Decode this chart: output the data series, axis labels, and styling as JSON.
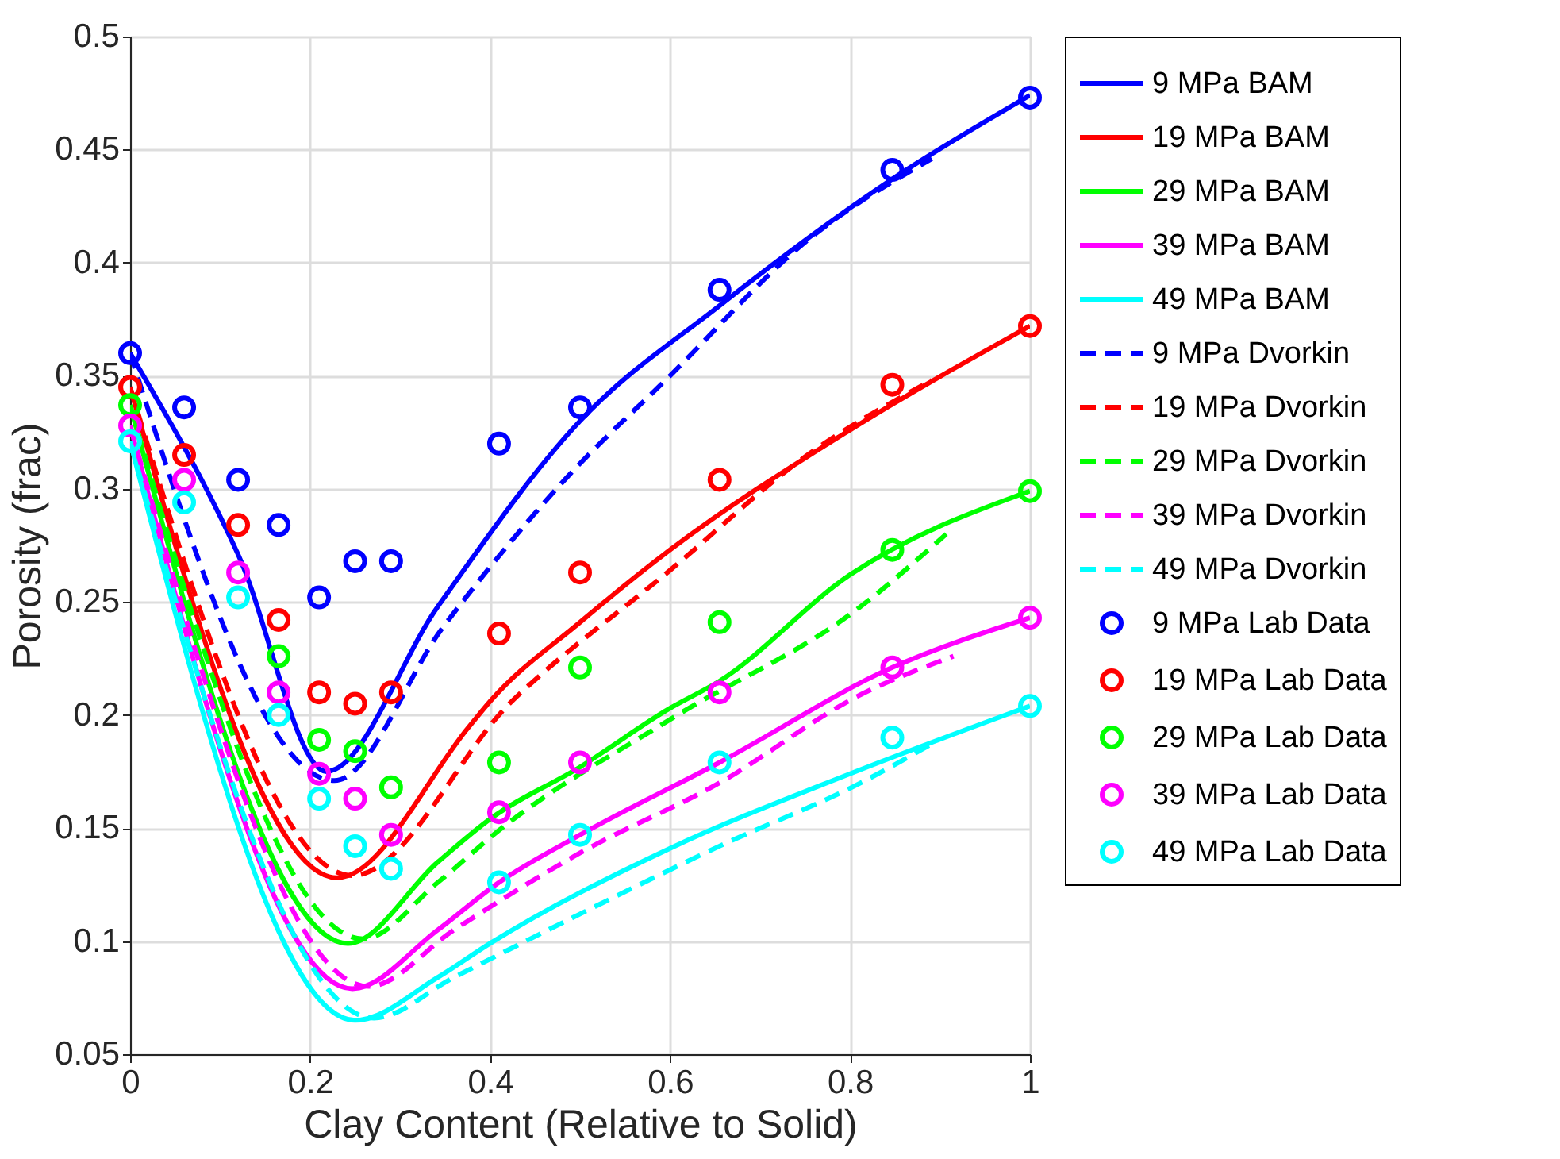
{
  "chart_data": {
    "type": "line",
    "xlabel": "Clay Content (Relative to Solid)",
    "ylabel": "Porosity (frac)",
    "xlim": [
      0,
      1
    ],
    "ylim": [
      0.05,
      0.5
    ],
    "xticks": [
      0,
      0.2,
      0.4,
      0.6,
      0.8,
      1
    ],
    "yticks": [
      0.05,
      0.1,
      0.15,
      0.2,
      0.25,
      0.3,
      0.35,
      0.4,
      0.45,
      0.5
    ],
    "grid": true,
    "legend": "top right",
    "series": [
      {
        "name": "9 MPa BAM",
        "type": "line",
        "line_style": "solid",
        "color": "#0000ff",
        "x": [
          0,
          0.12,
          0.218,
          0.342,
          0.5,
          0.655,
          0.847,
          1
        ],
        "values": [
          0.36,
          0.271,
          0.175,
          0.248,
          0.33,
          0.381,
          0.437,
          0.474
        ]
      },
      {
        "name": "19 MPa BAM",
        "type": "line",
        "line_style": "solid",
        "color": "#ff0000",
        "x": [
          0,
          0.23,
          0.377,
          0.4,
          0.5,
          0.6,
          0.8,
          1
        ],
        "values": [
          0.345,
          0.128,
          0.195,
          0.206,
          0.241,
          0.273,
          0.326,
          0.372
        ]
      },
      {
        "name": "29 MPa BAM",
        "type": "line",
        "line_style": "solid",
        "color": "#00ff00",
        "x": [
          0,
          0.242,
          0.342,
          0.4,
          0.5,
          0.6,
          0.655,
          0.8,
          1
        ],
        "values": [
          0.337,
          0.099,
          0.135,
          0.154,
          0.177,
          0.203,
          0.215,
          0.262,
          0.299
        ]
      },
      {
        "name": "39 MPa BAM",
        "type": "line",
        "line_style": "solid",
        "color": "#ff00ff",
        "x": [
          0,
          0.247,
          0.342,
          0.41,
          0.5,
          0.655,
          0.847,
          1
        ],
        "values": [
          0.328,
          0.079,
          0.105,
          0.126,
          0.147,
          0.179,
          0.221,
          0.243
        ]
      },
      {
        "name": "49 MPa BAM",
        "type": "line",
        "line_style": "solid",
        "color": "#00ffff",
        "x": [
          0,
          0.25,
          0.342,
          0.4,
          0.6,
          0.8,
          1
        ],
        "values": [
          0.321,
          0.065,
          0.084,
          0.099,
          0.141,
          0.174,
          0.204
        ]
      },
      {
        "name": "9 MPa Dvorkin",
        "type": "line",
        "line_style": "dashed",
        "color": "#0000ff",
        "x": [
          0,
          0.227,
          0.348,
          0.483,
          0.6,
          0.753,
          0.891
        ],
        "values": [
          0.36,
          0.171,
          0.239,
          0.304,
          0.35,
          0.41,
          0.446
        ]
      },
      {
        "name": "19 MPa Dvorkin",
        "type": "line",
        "line_style": "dashed",
        "color": "#ff0000",
        "x": [
          0,
          0.247,
          0.424,
          0.6,
          0.753,
          0.891
        ],
        "values": [
          0.345,
          0.129,
          0.206,
          0.264,
          0.315,
          0.348
        ]
      },
      {
        "name": "29 MPa Dvorkin",
        "type": "line",
        "line_style": "dashed",
        "color": "#00ff00",
        "x": [
          0,
          0.259,
          0.342,
          0.41,
          0.6,
          0.812,
          0.907
        ],
        "values": [
          0.337,
          0.101,
          0.126,
          0.149,
          0.198,
          0.248,
          0.28
        ]
      },
      {
        "name": "39 MPa Dvorkin",
        "type": "line",
        "line_style": "dashed",
        "color": "#ff00ff",
        "x": [
          0,
          0.265,
          0.36,
          0.5,
          0.655,
          0.812,
          0.915
        ],
        "values": [
          0.328,
          0.08,
          0.105,
          0.139,
          0.17,
          0.209,
          0.226
        ]
      },
      {
        "name": "49 MPa Dvorkin",
        "type": "line",
        "line_style": "dashed",
        "color": "#00ffff",
        "x": [
          0,
          0.271,
          0.36,
          0.5,
          0.655,
          0.812,
          0.89
        ],
        "values": [
          0.321,
          0.066,
          0.084,
          0.112,
          0.142,
          0.17,
          0.187
        ]
      },
      {
        "name": "9 MPa Lab Data",
        "type": "scatter",
        "marker": "circle",
        "color": "#0000ff",
        "x": [
          0,
          0.06,
          0.12,
          0.165,
          0.21,
          0.25,
          0.29,
          0.41,
          0.5,
          0.655,
          0.847,
          1
        ],
        "values": [
          0.36,
          0.336,
          0.304,
          0.284,
          0.252,
          0.268,
          0.268,
          0.32,
          0.336,
          0.388,
          0.441,
          0.473
        ]
      },
      {
        "name": "19 MPa Lab Data",
        "type": "scatter",
        "marker": "circle",
        "color": "#ff0000",
        "x": [
          0,
          0.06,
          0.12,
          0.165,
          0.21,
          0.25,
          0.29,
          0.41,
          0.5,
          0.655,
          0.847,
          1
        ],
        "values": [
          0.345,
          0.315,
          0.284,
          0.242,
          0.21,
          0.205,
          0.21,
          0.236,
          0.263,
          0.304,
          0.346,
          0.372
        ]
      },
      {
        "name": "29 MPa Lab Data",
        "type": "scatter",
        "marker": "circle",
        "color": "#00ff00",
        "x": [
          0,
          0.06,
          0.12,
          0.165,
          0.21,
          0.25,
          0.29,
          0.41,
          0.5,
          0.655,
          0.847,
          1
        ],
        "values": [
          0.337,
          null,
          null,
          0.226,
          0.189,
          0.184,
          0.168,
          0.179,
          0.221,
          0.241,
          0.273,
          0.299
        ]
      },
      {
        "name": "39 MPa Lab Data",
        "type": "scatter",
        "marker": "circle",
        "color": "#ff00ff",
        "x": [
          0,
          0.06,
          0.12,
          0.165,
          0.21,
          0.25,
          0.29,
          0.41,
          0.5,
          0.655,
          0.847,
          1
        ],
        "values": [
          0.328,
          0.304,
          0.263,
          0.21,
          0.174,
          0.163,
          0.147,
          0.157,
          0.179,
          0.21,
          0.221,
          0.243
        ]
      },
      {
        "name": "49 MPa Lab Data",
        "type": "scatter",
        "marker": "circle",
        "color": "#00ffff",
        "x": [
          0,
          0.06,
          0.12,
          0.165,
          0.21,
          0.25,
          0.29,
          0.41,
          0.5,
          0.655,
          0.847,
          1
        ],
        "values": [
          0.321,
          0.294,
          0.252,
          0.2,
          0.163,
          0.142,
          0.132,
          0.126,
          0.147,
          0.179,
          0.19,
          0.204
        ]
      }
    ]
  }
}
